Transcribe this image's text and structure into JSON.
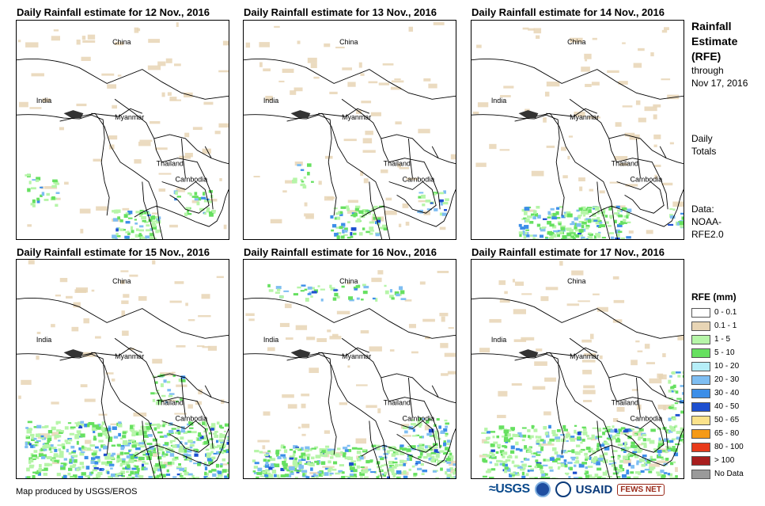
{
  "panels": [
    {
      "title": "Daily Rainfall estimate for 12 Nov., 2016"
    },
    {
      "title": "Daily Rainfall estimate for 13 Nov., 2016"
    },
    {
      "title": "Daily Rainfall estimate for 14 Nov., 2016"
    },
    {
      "title": "Daily Rainfall estimate for 15 Nov., 2016"
    },
    {
      "title": "Daily Rainfall estimate for 16 Nov., 2016"
    },
    {
      "title": "Daily Rainfall estimate for 17 Nov., 2016"
    }
  ],
  "country_labels": {
    "china": "China",
    "india": "India",
    "myanmar": "Myanmar",
    "thailand": "Thailand",
    "cambodia": "Cambodia"
  },
  "side": {
    "title_line1": "Rainfall",
    "title_line2": "Estimate",
    "title_line3": "(RFE)",
    "through_line1": "through",
    "through_line2": "Nov 17, 2016",
    "daily_line1": "Daily",
    "daily_line2": "Totals",
    "data_line1": "Data:",
    "data_line2": "NOAA-",
    "data_line3": "RFE2.0"
  },
  "legend": {
    "title": "RFE (mm)",
    "items": [
      {
        "label": "0 - 0.1",
        "color": "#ffffff"
      },
      {
        "label": "0.1 - 1",
        "color": "#e8d5b5"
      },
      {
        "label": "1 - 5",
        "color": "#b6f5a8"
      },
      {
        "label": "5 - 10",
        "color": "#66e060"
      },
      {
        "label": "10 - 20",
        "color": "#b6eef8"
      },
      {
        "label": "20 - 30",
        "color": "#7fbef2"
      },
      {
        "label": "30 - 40",
        "color": "#3c8ee8"
      },
      {
        "label": "40 - 50",
        "color": "#1d4fd0"
      },
      {
        "label": "50 - 65",
        "color": "#fbe28a"
      },
      {
        "label": "65 - 80",
        "color": "#f59a18"
      },
      {
        "label": "80 - 100",
        "color": "#e83a1a"
      },
      {
        "label": "> 100",
        "color": "#a81e1e"
      },
      {
        "label": "No Data",
        "color": "#9a9a9a"
      }
    ]
  },
  "credit": "Map produced by USGS/EROS",
  "logos": {
    "usgs": "≈USGS",
    "usaid": "USAID",
    "fews": "FEWS NET"
  }
}
